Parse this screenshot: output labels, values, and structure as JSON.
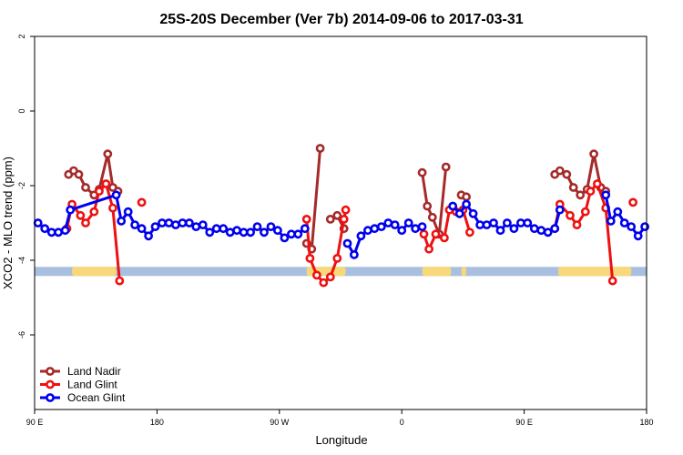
{
  "chart_data": {
    "type": "line",
    "title": "25S-20S December (Ver 7b)   2014-09-06 to 2017-03-31",
    "xlabel": "Longitude",
    "ylabel": "XCO2 - MLO trend (ppm)",
    "xlim": [
      0,
      360
    ],
    "ylim": [
      -8,
      2
    ],
    "x_ticks": [
      {
        "value": 0,
        "label": "90 E"
      },
      {
        "value": 72,
        "label": "180"
      },
      {
        "value": 144,
        "label": "90 W"
      },
      {
        "value": 216,
        "label": "0"
      },
      {
        "value": 288,
        "label": "90 E"
      },
      {
        "value": 360,
        "label": "180"
      }
    ],
    "y_ticks": [
      {
        "value": 2,
        "label": "2"
      },
      {
        "value": 0,
        "label": "0"
      },
      {
        "value": -2,
        "label": "-2"
      },
      {
        "value": -4,
        "label": "-4"
      },
      {
        "value": -6,
        "label": "-6"
      }
    ],
    "land_band": {
      "y": -4.3,
      "ocean_color": "#a8bfe0",
      "land_color": "#f8d878",
      "land_ranges": [
        [
          22,
          48
        ],
        [
          160,
          183
        ],
        [
          228,
          245
        ],
        [
          251,
          254
        ],
        [
          308,
          351
        ]
      ]
    },
    "legend_position": "bottom-left",
    "series": [
      {
        "name": "Land Nadir",
        "color": "#a52a2a",
        "segments": [
          [
            [
              20,
              -1.7
            ],
            [
              23,
              -1.6
            ],
            [
              26,
              -1.7
            ],
            [
              30,
              -2.05
            ],
            [
              35,
              -2.25
            ],
            [
              38,
              -2.1
            ],
            [
              43,
              -1.15
            ],
            [
              46,
              -2.05
            ],
            [
              49,
              -2.15
            ]
          ],
          [
            [
              160,
              -3.55
            ],
            [
              163,
              -3.7
            ],
            [
              168,
              -1.0
            ]
          ],
          [
            [
              174,
              -2.9
            ],
            [
              178,
              -2.8
            ],
            [
              182,
              -3.15
            ]
          ],
          [
            [
              228,
              -1.65
            ],
            [
              231,
              -2.55
            ],
            [
              234,
              -2.85
            ],
            [
              238,
              -3.3
            ],
            [
              242,
              -1.5
            ]
          ],
          [
            [
              251,
              -2.25
            ],
            [
              254,
              -2.3
            ]
          ],
          [
            [
              306,
              -1.7
            ],
            [
              309,
              -1.6
            ],
            [
              313,
              -1.7
            ],
            [
              317,
              -2.05
            ],
            [
              321,
              -2.25
            ],
            [
              325,
              -2.1
            ],
            [
              329,
              -1.15
            ],
            [
              333,
              -2.05
            ],
            [
              336,
              -2.15
            ]
          ]
        ]
      },
      {
        "name": "Land Glint",
        "color": "#ee1111",
        "segments": [
          [
            [
              19,
              -3.15
            ],
            [
              22,
              -2.5
            ],
            [
              27,
              -2.8
            ],
            [
              30,
              -3.0
            ],
            [
              35,
              -2.7
            ],
            [
              38,
              -2.15
            ],
            [
              42,
              -1.95
            ],
            [
              46,
              -2.6
            ],
            [
              50,
              -4.55
            ]
          ],
          [
            [
              63,
              -2.45
            ]
          ],
          [
            [
              160,
              -2.9
            ],
            [
              162,
              -3.95
            ],
            [
              166,
              -4.4
            ],
            [
              170,
              -4.6
            ],
            [
              174,
              -4.45
            ],
            [
              178,
              -3.95
            ],
            [
              182,
              -2.9
            ],
            [
              183,
              -2.65
            ]
          ],
          [
            [
              229,
              -3.3
            ],
            [
              232,
              -3.7
            ],
            [
              236,
              -3.3
            ],
            [
              241,
              -3.4
            ],
            [
              244,
              -2.65
            ],
            [
              248,
              -2.7
            ],
            [
              252,
              -2.65
            ],
            [
              256,
              -3.25
            ]
          ],
          [
            [
              306,
              -3.15
            ],
            [
              309,
              -2.5
            ],
            [
              315,
              -2.8
            ],
            [
              319,
              -3.05
            ],
            [
              324,
              -2.7
            ],
            [
              327,
              -2.15
            ],
            [
              331,
              -1.95
            ],
            [
              336,
              -2.6
            ],
            [
              340,
              -4.55
            ]
          ],
          [
            [
              352,
              -2.45
            ]
          ]
        ]
      },
      {
        "name": "Ocean Glint",
        "color": "#0000ee",
        "segments": [
          [
            [
              2,
              -3.0
            ],
            [
              6,
              -3.15
            ],
            [
              10,
              -3.25
            ],
            [
              14,
              -3.25
            ],
            [
              18,
              -3.2
            ],
            [
              21,
              -2.65
            ],
            [
              48,
              -2.25
            ],
            [
              51,
              -2.95
            ],
            [
              55,
              -2.7
            ],
            [
              59,
              -3.05
            ],
            [
              63,
              -3.15
            ],
            [
              67,
              -3.35
            ],
            [
              71,
              -3.1
            ],
            [
              75,
              -3.0
            ],
            [
              79,
              -3.0
            ],
            [
              83,
              -3.05
            ],
            [
              87,
              -3.0
            ],
            [
              91,
              -3.0
            ],
            [
              95,
              -3.1
            ],
            [
              99,
              -3.05
            ],
            [
              103,
              -3.25
            ],
            [
              107,
              -3.15
            ],
            [
              111,
              -3.15
            ],
            [
              115,
              -3.25
            ],
            [
              119,
              -3.2
            ],
            [
              123,
              -3.25
            ],
            [
              127,
              -3.25
            ],
            [
              131,
              -3.1
            ],
            [
              135,
              -3.25
            ],
            [
              139,
              -3.1
            ],
            [
              143,
              -3.2
            ],
            [
              147,
              -3.4
            ],
            [
              151,
              -3.3
            ],
            [
              155,
              -3.3
            ],
            [
              159,
              -3.15
            ]
          ],
          [
            [
              184,
              -3.55
            ],
            [
              188,
              -3.85
            ],
            [
              192,
              -3.35
            ],
            [
              196,
              -3.2
            ],
            [
              200,
              -3.15
            ],
            [
              204,
              -3.1
            ],
            [
              208,
              -3.0
            ],
            [
              212,
              -3.05
            ],
            [
              216,
              -3.2
            ],
            [
              220,
              -3.0
            ],
            [
              224,
              -3.15
            ],
            [
              228,
              -3.1
            ]
          ],
          [
            [
              246,
              -2.55
            ],
            [
              250,
              -2.75
            ],
            [
              254,
              -2.5
            ],
            [
              258,
              -2.75
            ],
            [
              262,
              -3.05
            ],
            [
              266,
              -3.05
            ],
            [
              270,
              -3.0
            ],
            [
              274,
              -3.2
            ],
            [
              278,
              -3.0
            ],
            [
              282,
              -3.15
            ],
            [
              286,
              -3.0
            ],
            [
              290,
              -3.0
            ],
            [
              294,
              -3.15
            ],
            [
              298,
              -3.2
            ],
            [
              302,
              -3.25
            ],
            [
              306,
              -3.15
            ],
            [
              309,
              -2.65
            ]
          ],
          [
            [
              336,
              -2.25
            ],
            [
              339,
              -2.95
            ],
            [
              343,
              -2.7
            ],
            [
              347,
              -3.0
            ],
            [
              351,
              -3.1
            ],
            [
              355,
              -3.35
            ],
            [
              359,
              -3.1
            ]
          ]
        ]
      }
    ]
  }
}
